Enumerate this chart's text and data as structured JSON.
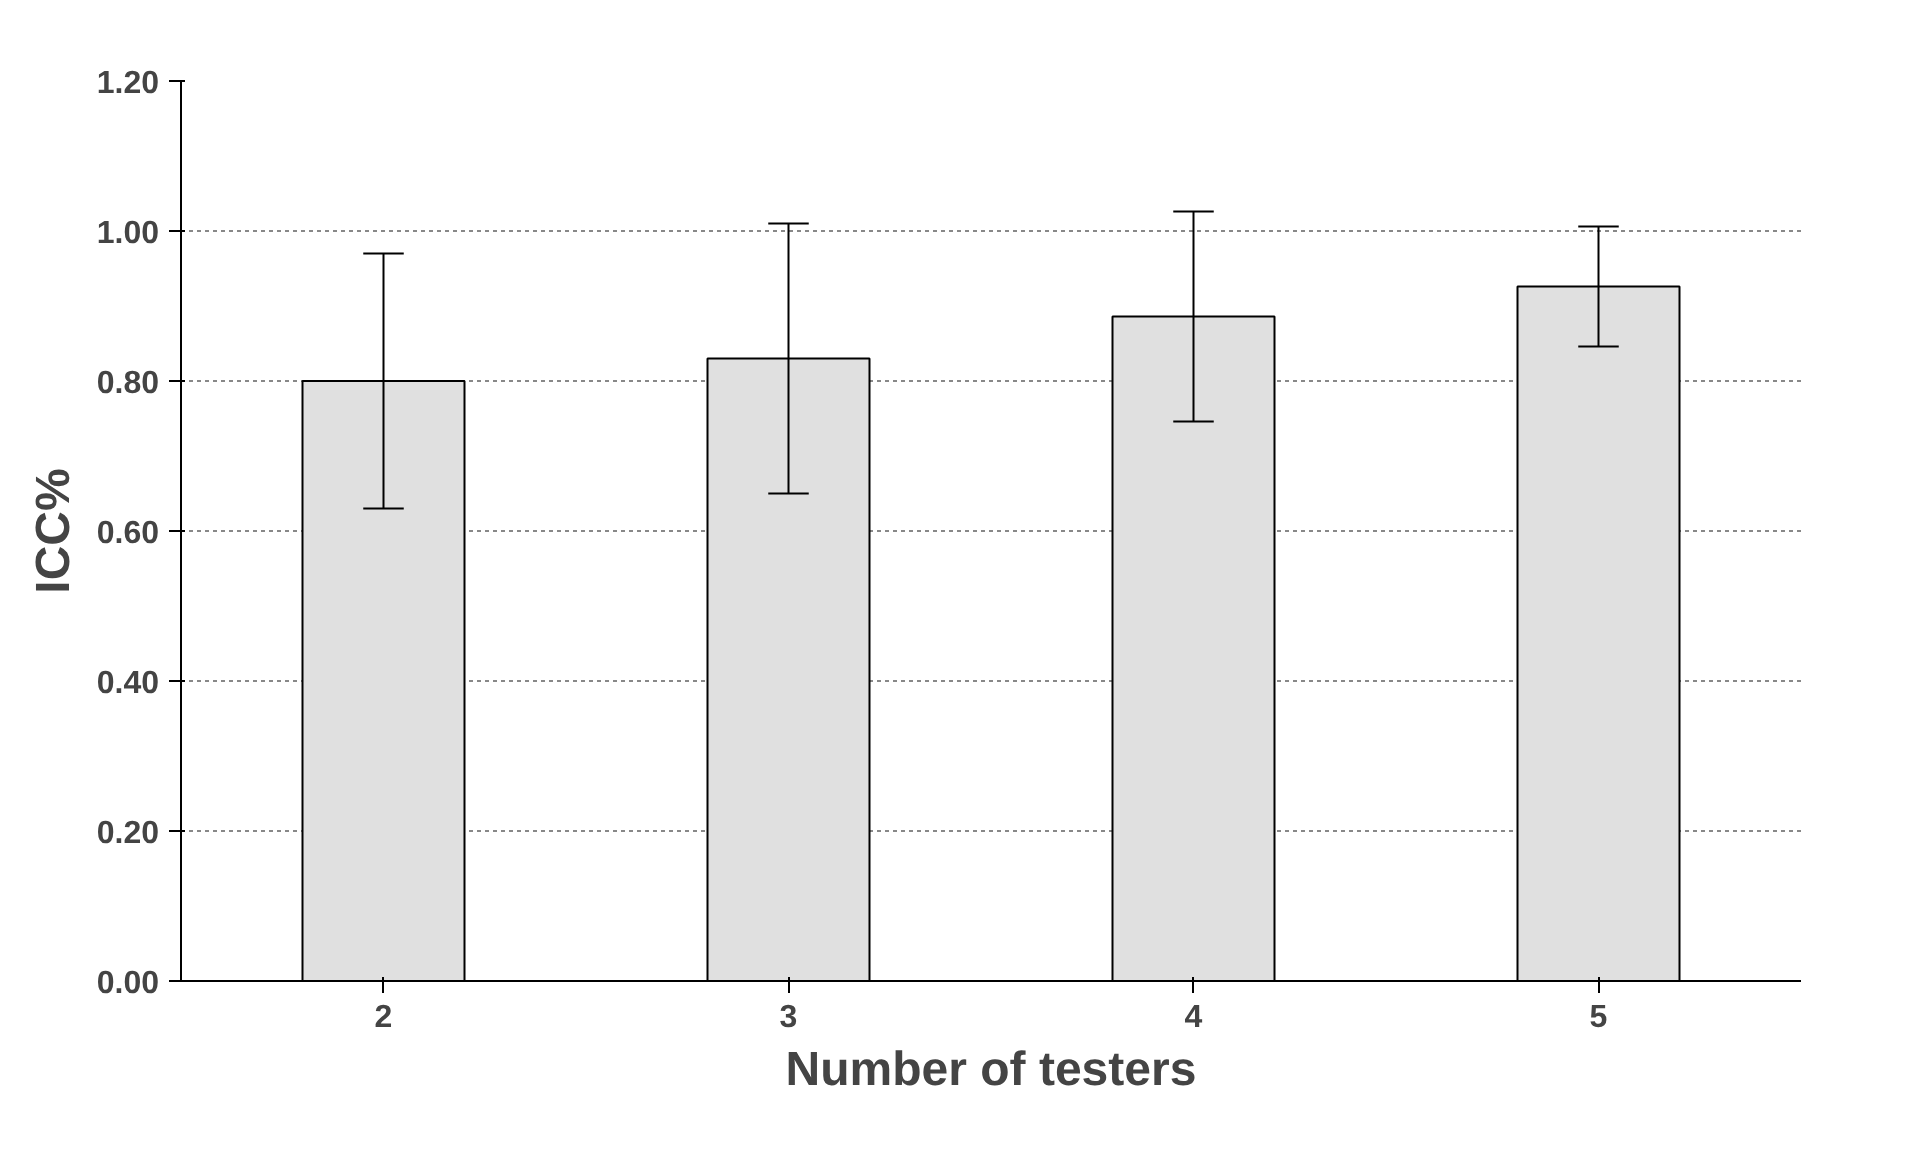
{
  "chart_data": {
    "type": "bar",
    "xlabel": "Number of testers",
    "ylabel": "ICC%",
    "categories": [
      "2",
      "3",
      "4",
      "5"
    ],
    "values": [
      0.8,
      0.83,
      0.886,
      0.926
    ],
    "errors": [
      0.17,
      0.18,
      0.14,
      0.08
    ],
    "color": "#e0e0e0",
    "ylim": [
      0,
      1.2
    ],
    "yticks": [
      {
        "value": 0,
        "label": "0.00"
      },
      {
        "value": 0.2,
        "label": "0.20"
      },
      {
        "value": 0.4,
        "label": "0.40"
      },
      {
        "value": 0.6,
        "label": "0.60"
      },
      {
        "value": 0.8,
        "label": "0.80"
      },
      {
        "value": 1.0,
        "label": "1.00"
      },
      {
        "value": 1.2,
        "label": "1.20"
      }
    ],
    "grid": "y"
  }
}
